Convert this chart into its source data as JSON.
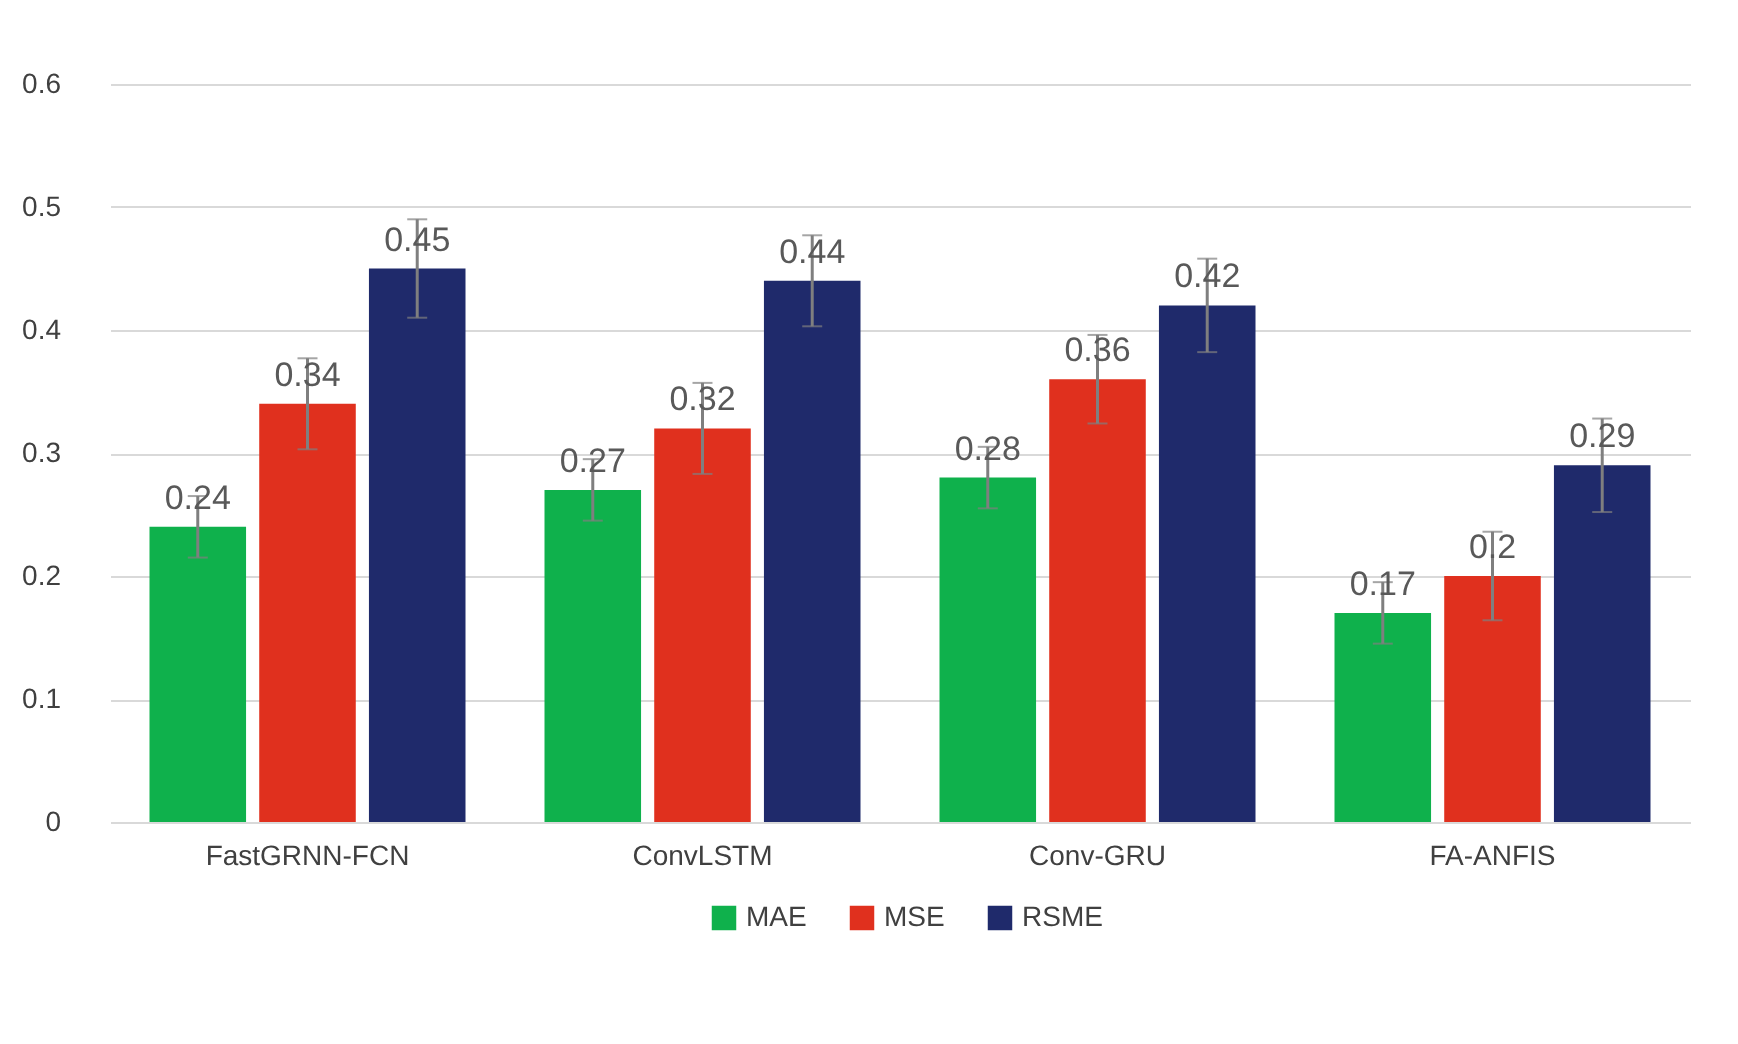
{
  "chart_data": {
    "type": "bar",
    "categories": [
      "FastGRNN-FCN",
      "ConvLSTM",
      "Conv-GRU",
      "FA-ANFIS"
    ],
    "series": [
      {
        "name": "MAE",
        "color": "#0fb14c",
        "values": [
          0.24,
          0.27,
          0.28,
          0.17
        ],
        "errors": [
          0.025,
          0.025,
          0.025,
          0.025
        ]
      },
      {
        "name": "MSE",
        "color": "#e0301e",
        "values": [
          0.34,
          0.32,
          0.36,
          0.2
        ],
        "errors": [
          0.037,
          0.037,
          0.036,
          0.036
        ]
      },
      {
        "name": "RSME",
        "color": "#1f2a6b",
        "values": [
          0.45,
          0.44,
          0.42,
          0.29
        ],
        "errors": [
          0.04,
          0.037,
          0.038,
          0.038
        ]
      }
    ],
    "ylim": [
      0,
      0.6
    ],
    "yticks": [
      0,
      0.1,
      0.2,
      0.3,
      0.4,
      0.5,
      0.6
    ],
    "grid": "y",
    "legend": "bottom",
    "data_labels": true
  }
}
